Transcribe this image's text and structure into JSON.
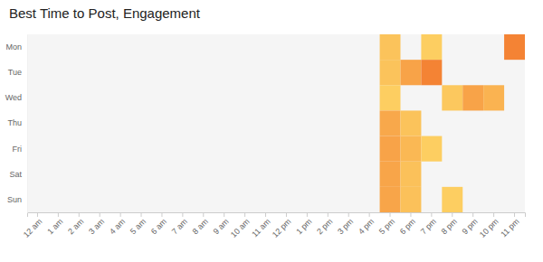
{
  "chart_data": {
    "type": "heatmap",
    "title": "Best Time to Post, Engagement",
    "x": [
      "12 am",
      "1 am",
      "2 am",
      "3 am",
      "4 am",
      "5 am",
      "6 am",
      "7 am",
      "8 am",
      "9 am",
      "10 am",
      "11 am",
      "12 pm",
      "1 pm",
      "2 pm",
      "3 pm",
      "4 pm",
      "5 pm",
      "6 pm",
      "7 pm",
      "8 pm",
      "9 pm",
      "10 pm",
      "11 pm"
    ],
    "y": [
      "Mon",
      "Tue",
      "Wed",
      "Thu",
      "Fri",
      "Sat",
      "Sun"
    ],
    "values": [
      [
        null,
        null,
        null,
        null,
        null,
        null,
        null,
        null,
        null,
        null,
        null,
        null,
        null,
        null,
        null,
        null,
        null,
        30,
        null,
        20,
        null,
        null,
        null,
        90
      ],
      [
        null,
        null,
        null,
        null,
        null,
        null,
        null,
        null,
        null,
        null,
        null,
        null,
        null,
        null,
        null,
        null,
        null,
        30,
        60,
        90,
        null,
        null,
        null,
        null
      ],
      [
        null,
        null,
        null,
        null,
        null,
        null,
        null,
        null,
        null,
        null,
        null,
        null,
        null,
        null,
        null,
        null,
        null,
        20,
        null,
        null,
        25,
        60,
        45,
        null
      ],
      [
        null,
        null,
        null,
        null,
        null,
        null,
        null,
        null,
        null,
        null,
        null,
        null,
        null,
        null,
        null,
        null,
        null,
        55,
        30,
        null,
        null,
        null,
        null,
        null
      ],
      [
        null,
        null,
        null,
        null,
        null,
        null,
        null,
        null,
        null,
        null,
        null,
        null,
        null,
        null,
        null,
        null,
        null,
        60,
        40,
        20,
        null,
        null,
        null,
        null
      ],
      [
        null,
        null,
        null,
        null,
        null,
        null,
        null,
        null,
        null,
        null,
        null,
        null,
        null,
        null,
        null,
        null,
        null,
        58,
        32,
        null,
        null,
        null,
        null,
        null
      ],
      [
        null,
        null,
        null,
        null,
        null,
        null,
        null,
        null,
        null,
        null,
        null,
        null,
        null,
        null,
        null,
        null,
        null,
        58,
        32,
        null,
        20,
        null,
        null,
        null
      ]
    ],
    "zlim": [
      0,
      100
    ]
  }
}
